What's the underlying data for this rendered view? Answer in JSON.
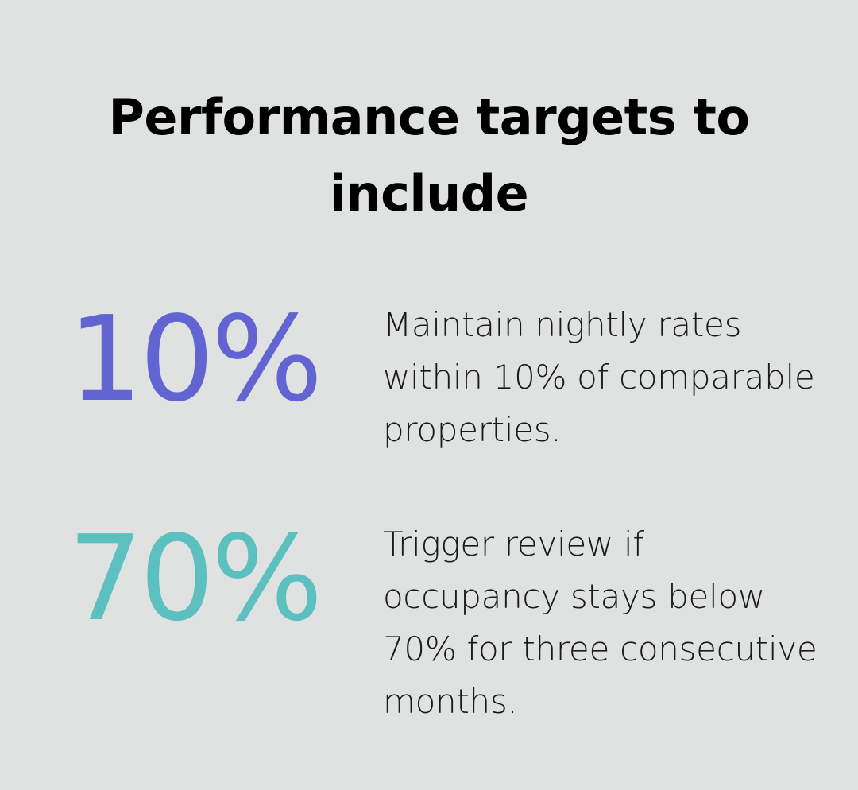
{
  "title": "Performance targets to include",
  "stats": [
    {
      "value": "10%",
      "color": "#6264d2",
      "description": "Maintain nightly rates within 10% of comparable properties."
    },
    {
      "value": "70%",
      "color": "#5bc0bf",
      "description": "Trigger review if occupancy stays below 70% for three consecutive months."
    }
  ]
}
